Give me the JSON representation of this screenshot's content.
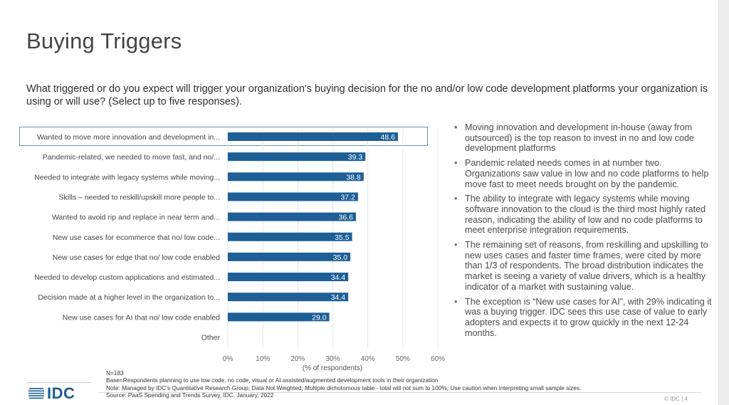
{
  "title": "Buying Triggers",
  "question": "What triggered or do you expect will trigger your organization's buying decision for the no and/or low code development platforms your organization is using or will use? (Select up to five responses).",
  "chart_data": {
    "type": "bar",
    "orientation": "horizontal",
    "categories": [
      "Wanted to move more innovation and development in...",
      "Pandemic-related, we needed to move fast, and no/...",
      "Needed to integrate with legacy systems while moving...",
      "Skills – needed to reskill/upskill more people to...",
      "Wanted to avoid rip and replace in near term and...",
      "New use cases for ecommerce that no/ low code...",
      "New use cases for edge that no/ low code enabled",
      "Needed to develop custom applications and estimated...",
      "Decision made at a higher level in the organization to...",
      "New use cases for AI that no/ low code enabled",
      "Other"
    ],
    "values": [
      48.6,
      39.3,
      38.8,
      37.2,
      36.6,
      35.5,
      35.0,
      34.4,
      34.4,
      29.0,
      null
    ],
    "value_labels": [
      "48.6",
      "39.3",
      "38.8",
      "37.2",
      "36.6",
      "35.5",
      "35.0",
      "34.4",
      "34.4",
      "29.0",
      ""
    ],
    "xlim": [
      0,
      60
    ],
    "xticks": [
      "0%",
      "10%",
      "20%",
      "30%",
      "40%",
      "50%",
      "60%"
    ],
    "xlabel": "(% of respondents)",
    "bar_color": "#1d5f96",
    "highlight_color": "#6a95a8",
    "highlighted_index": 0
  },
  "bullets": [
    "Moving innovation and development in-house (away from outsourced) is the top reason to invest in no and low code development platforms",
    "Pandemic related needs comes in at number two. Organizations saw value in low and no code platforms to help move fast to meet needs brought on by the pandemic.",
    "The ability to integrate with legacy systems while moving software innovation to the cloud is the third most highly rated reason, indicating the ability of low and no code platforms to meet enterprise integration requirements.",
    "The remaining set of reasons, from reskilling and upskilling to new uses cases and faster time frames, were cited by more than 1/3 of respondents. The broad distribution indicates the market is seeing a variety of value drivers, which is a healthy indicator of a market with sustaining value.",
    "The exception is “New use cases for AI”, with 29% indicating it was a buying trigger. IDC sees this use case of value to early adopters and expects it to grow quickly in the next 12-24 months."
  ],
  "footnotes": {
    "n": "N=183",
    "base": "Base=Respondents planning to use low code, no code, visual or AI assisted/augmented development tools in their organization",
    "note": "Note: Managed by IDC's Quantitative Research Group; Data Not Weighted; Multiple dichotomous table - total will not sum to 100%; Use caution when interpreting small sample sizes.",
    "source": "Source: PaaS Spending and Trends Survey, IDC, January, 2022"
  },
  "footer": {
    "logo_text": "IDC",
    "copyright": "© IDC",
    "page_number": "4"
  },
  "colors": {
    "brand": "#1b5d8c"
  }
}
